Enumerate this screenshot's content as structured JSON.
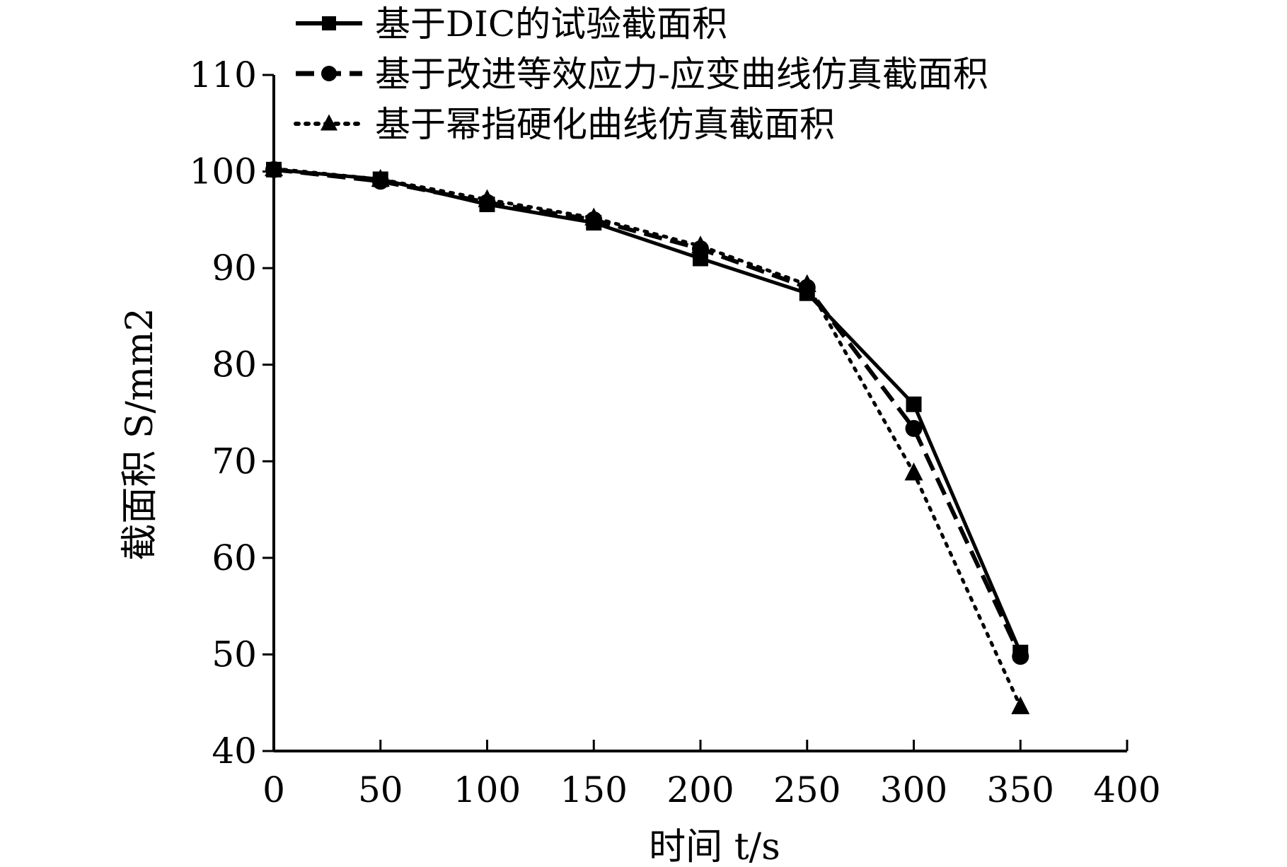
{
  "chart_data": {
    "type": "line",
    "xlabel": "时间 t/s",
    "ylabel": "截面积 S/mm2",
    "xlim": [
      0,
      400
    ],
    "ylim": [
      40,
      110
    ],
    "x_ticks": [
      0,
      50,
      100,
      150,
      200,
      250,
      300,
      350,
      400
    ],
    "y_ticks": [
      40,
      50,
      60,
      70,
      80,
      90,
      100,
      110
    ],
    "grid": false,
    "legend_position": "top",
    "x": [
      0,
      50,
      100,
      150,
      200,
      250,
      300,
      350
    ],
    "series": [
      {
        "name": "基于DIC的试验截面积",
        "values": [
          100.2,
          99.2,
          96.6,
          94.7,
          91.0,
          87.4,
          75.9,
          50.2
        ],
        "line_style": "solid",
        "marker": "square",
        "color": "#000000"
      },
      {
        "name": "基于改进等效应力-应变曲线仿真截面积",
        "values": [
          100.2,
          99.0,
          96.8,
          95.0,
          92.0,
          88.0,
          73.4,
          49.8
        ],
        "line_style": "dashed",
        "marker": "circle",
        "color": "#000000"
      },
      {
        "name": "基于幂指硬化曲线仿真截面积",
        "values": [
          100.3,
          99.2,
          97.1,
          95.2,
          92.3,
          88.3,
          68.8,
          44.6
        ],
        "line_style": "dotted",
        "marker": "triangle",
        "color": "#000000"
      }
    ]
  }
}
